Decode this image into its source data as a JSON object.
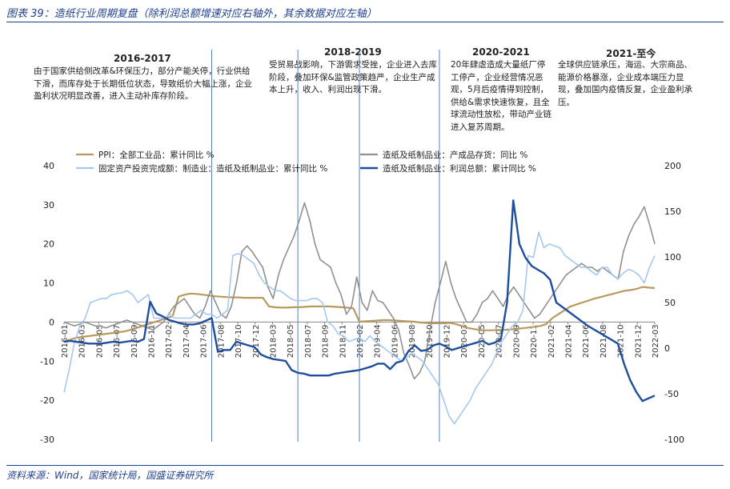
{
  "title": "图表 39：造纸行业周期复盘（除利润总额增速对应右轴外，其余数据对应左轴）",
  "source": "资料来源：Wind，国家统计局，国盛证券研究所",
  "periods": [
    {
      "title": "2016-2017",
      "text": "由于国家供给侧改革&环保压力，部分产能关停，行业供给下滑，而库存处于长期低位状态，导致纸价大幅上涨，企业盈利状况明显改善，进入主动补库存阶段。"
    },
    {
      "title": "2018-2019",
      "text": "受贸易战影响，下游需求受挫，企业进入去库阶段，叠加环保&监管政策趋严，企业生产成本上升，收入、利润出现下滑。"
    },
    {
      "title": "2020-2021",
      "text": "20年肆虐造成大量纸厂停工停产，企业经营情况恶观，5月后疫情得到控制，供给&需求快速恢复，且全球流动性放松，带动产业链进入复苏周期。"
    },
    {
      "title": "2021-至今",
      "text": "全球供应链承压，海运、大宗商品、能源价格暴涨，企业成本端压力显现，叠加国内疫情反复，企业盈利承压。"
    }
  ],
  "chart_data": {
    "type": "line",
    "left_axis": {
      "min": -30,
      "max": 40,
      "ticks": [
        "40",
        "30",
        "20",
        "10",
        "0",
        "-10",
        "-20",
        "-30"
      ]
    },
    "right_axis": {
      "min": -100,
      "max": 200,
      "ticks": [
        "200",
        "150",
        "100",
        "50",
        "0",
        "-50",
        "-100"
      ]
    },
    "x_tick_labels": [
      "2016-01",
      "2016-03",
      "2016-05",
      "2016-07",
      "2016-09",
      "2016-11",
      "2017-02",
      "2017-04",
      "2017-06",
      "2017-08",
      "2017-10",
      "2017-12",
      "2018-03",
      "2018-05",
      "2018-07",
      "2018-09",
      "2018-11",
      "2019-02",
      "2019-04",
      "2019-06",
      "2019-08",
      "2019-10",
      "2019-12",
      "2020-03",
      "2020-05",
      "2020-07",
      "2020-09",
      "2020-11",
      "2021-02",
      "2021-04",
      "2021-06",
      "2021-08",
      "2021-10",
      "2021-12",
      "2022-03"
    ],
    "divider_index": [
      24,
      38,
      48,
      61
    ],
    "series": [
      {
        "name": "PPI：全部工业品：累计同比 %",
        "axis": "left",
        "color": "#b89a5e",
        "values": [
          -5,
          -4.5,
          -4,
          -3.8,
          -3.6,
          -3.4,
          -3.2,
          -3,
          -2.8,
          -2.6,
          -2.4,
          -2,
          -1.5,
          -1,
          -0.5,
          0,
          0.5,
          1,
          1.5,
          6.5,
          7,
          7.3,
          7.2,
          7,
          6.8,
          6.6,
          6.5,
          6.4,
          6.3,
          6.3,
          6.2,
          6.2,
          6.2,
          6.2,
          4,
          3.8,
          3.7,
          3.7,
          3.8,
          3.8,
          3.9,
          4,
          4,
          4,
          4,
          3.9,
          3.8,
          3.7,
          3.5,
          0.1,
          0.2,
          0.3,
          0.4,
          0.5,
          0.5,
          0.4,
          0.3,
          0.2,
          0.1,
          -0.1,
          -0.2,
          -0.3,
          -0.3,
          -0.3,
          -0.2,
          -0.5,
          -1,
          -1.5,
          -1.8,
          -2,
          -2.1,
          -2.1,
          -2,
          -2,
          -1.9,
          -1.8,
          -1.6,
          -1.4,
          -1.2,
          -1,
          -0.5,
          1,
          2,
          3,
          4,
          4.5,
          5,
          5.5,
          6,
          6.4,
          6.8,
          7.2,
          7.6,
          8,
          8.2,
          8.5,
          9,
          8.8,
          8.7
        ]
      },
      {
        "name": "造纸及纸制品业：产成品存货：同比 %",
        "axis": "left",
        "color": "#909090",
        "values": [
          0,
          -0.5,
          -1,
          -0.5,
          0,
          -0.5,
          -1,
          -1,
          -1.5,
          -1,
          -0.5,
          0,
          0.5,
          0,
          -0.5,
          -1,
          -1.5,
          -2,
          -1,
          0,
          2,
          4,
          5,
          6,
          4,
          2,
          1,
          4,
          8,
          5,
          2,
          1,
          4,
          10,
          18,
          19.5,
          18,
          16,
          14,
          9,
          6,
          12,
          16,
          19,
          22,
          26,
          30.5,
          26,
          20,
          16,
          15,
          14,
          10,
          7,
          2,
          4,
          11.5,
          5,
          3,
          8,
          5.5,
          5,
          3,
          1,
          -2,
          -8,
          -11,
          -14.5,
          -13,
          -10,
          -2,
          5,
          10,
          15.5,
          10,
          6,
          3,
          0,
          0,
          2,
          5,
          6,
          8,
          6,
          4,
          7,
          9,
          7,
          5,
          3,
          1,
          2,
          4,
          6,
          8,
          10,
          12,
          13,
          14,
          15,
          14,
          14,
          13,
          14,
          13,
          12,
          11,
          18,
          22,
          25,
          27,
          29.5,
          25,
          20
        ]
      },
      {
        "name": "固定资产投资完成额：制造业：造纸及纸制品业：累计同比 %",
        "axis": "left",
        "color": "#a6c8ef",
        "values": [
          -18,
          -12,
          -5,
          -1,
          1,
          5,
          5.5,
          6,
          6,
          7,
          7.3,
          7.5,
          8,
          7,
          5,
          6,
          7,
          1,
          1,
          1,
          2,
          1,
          1,
          1,
          1,
          2,
          3,
          2,
          2,
          1,
          2,
          3,
          17,
          17.5,
          17,
          16,
          15,
          12,
          10,
          9,
          8,
          8,
          7,
          6,
          5.5,
          5.5,
          5.5,
          6,
          6,
          5,
          0,
          -1,
          -3,
          -3.5,
          -5,
          -4.5,
          -4,
          -5,
          -3.5,
          -5,
          -6,
          -7,
          -8,
          -9,
          -10,
          -9,
          -8,
          -9,
          -10,
          -12,
          -14,
          -16,
          -20,
          -24,
          -26,
          -24,
          -22,
          -20,
          -17,
          -15,
          -13,
          -11,
          -8,
          -5,
          -3,
          -1,
          0,
          3,
          17,
          16.5,
          23,
          19,
          20,
          19.5,
          19,
          17,
          16,
          15,
          14,
          14,
          13,
          12,
          14,
          14,
          12,
          11,
          12.5,
          13.5,
          13,
          12,
          10,
          14,
          17
        ]
      },
      {
        "name": "造纸及纸制品业：利润总额：累计同比 %",
        "axis": "right",
        "color": "#1f4e9c",
        "values": [
          7,
          8,
          7,
          6,
          5,
          5,
          5,
          6,
          7,
          6,
          7,
          8,
          7,
          10,
          51,
          38,
          35,
          31,
          29,
          27,
          26,
          26,
          27,
          30,
          33,
          -4,
          -2,
          -2,
          7,
          5,
          3,
          1,
          -7,
          -10,
          -12,
          -13,
          -14,
          -24,
          -27,
          -28,
          -30,
          -30,
          -30,
          -30,
          -28,
          -27,
          -26,
          -25,
          -24,
          -22,
          -20,
          -17,
          -17,
          -23,
          -16,
          -14,
          -3,
          3,
          -3,
          -2,
          3,
          5,
          2,
          -2,
          0,
          2,
          4,
          6,
          8,
          4,
          6,
          10,
          50,
          162,
          114,
          99,
          90,
          86,
          82,
          75,
          50,
          45,
          40,
          35,
          30,
          25,
          21,
          17,
          13,
          9,
          5,
          -17,
          -35,
          -48,
          -58,
          -55,
          -52
        ]
      }
    ]
  }
}
